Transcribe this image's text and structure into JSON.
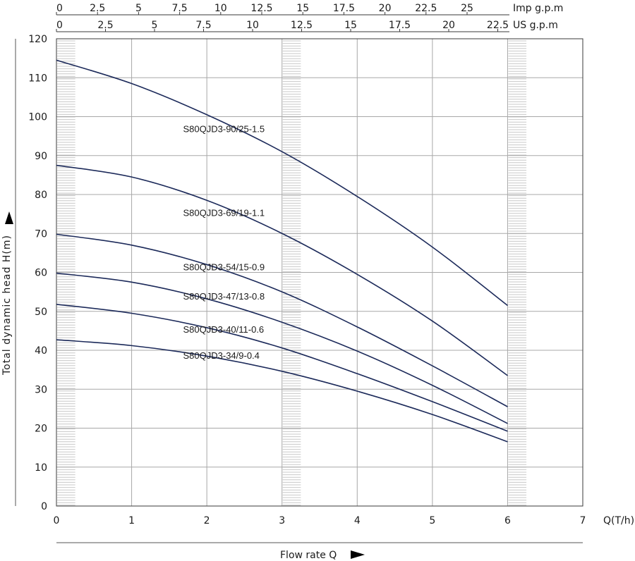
{
  "chart_data": {
    "type": "line",
    "xlabel": "Flow rate Q",
    "xunit": "Q(T/h)",
    "ylabel": "Total dynamic head H(m)",
    "xlim": [
      0,
      7
    ],
    "ylim": [
      0,
      120
    ],
    "x_ticks": [
      0,
      1,
      2,
      3,
      4,
      5,
      6,
      7
    ],
    "y_ticks": [
      0,
      10,
      20,
      30,
      40,
      50,
      60,
      70,
      80,
      90,
      100,
      110,
      120
    ],
    "grid": true,
    "hatched_bands": [
      [
        0,
        0.25
      ],
      [
        3,
        3.25
      ],
      [
        6,
        6.25
      ]
    ],
    "top_axes": [
      {
        "label": "Imp g.p.m",
        "ticks": [
          "0",
          "2.5",
          "5",
          "7.5",
          "10",
          "12.5",
          "15",
          "17.5",
          "20",
          "22.5",
          "25"
        ]
      },
      {
        "label": "US g.p.m",
        "ticks": [
          "0",
          "2.5",
          "5",
          "7.5",
          "10",
          "12.5",
          "15",
          "17.5",
          "20",
          "22.5"
        ]
      }
    ],
    "series": [
      {
        "name": "S80QJD3-90/25-1.5",
        "x": [
          0,
          1,
          2,
          3,
          4,
          5,
          6
        ],
        "y": [
          114.5,
          108.5,
          100.5,
          91,
          79.5,
          66.5,
          51.5
        ],
        "label_at": [
          1.75,
          96
        ]
      },
      {
        "name": "S80QJD3-69/19-1.1",
        "x": [
          0,
          1,
          2,
          3,
          4,
          5,
          6
        ],
        "y": [
          87.5,
          84.5,
          78.5,
          70,
          59.5,
          47.5,
          33.5
        ],
        "label_at": [
          1.75,
          74.5
        ]
      },
      {
        "name": "S80QJD3-54/15-0.9",
        "x": [
          0,
          1,
          2,
          3,
          4,
          5,
          6
        ],
        "y": [
          69.8,
          67,
          62,
          55,
          46,
          36,
          25.5
        ],
        "label_at": [
          1.75,
          60.5
        ]
      },
      {
        "name": "S80QJD3-47/13-0.8",
        "x": [
          0,
          1,
          2,
          3,
          4,
          5,
          6
        ],
        "y": [
          59.8,
          57.5,
          53.2,
          47.2,
          39.8,
          31,
          21.2
        ],
        "label_at": [
          1.75,
          53
        ]
      },
      {
        "name": "S80QJD3-40/11-0.6",
        "x": [
          0,
          1,
          2,
          3,
          4,
          5,
          6
        ],
        "y": [
          51.8,
          49.5,
          45.8,
          40.6,
          34,
          26.8,
          19.2
        ],
        "label_at": [
          1.75,
          44.5
        ]
      },
      {
        "name": "S80QJD3-34/9-0.4",
        "x": [
          0,
          1,
          2,
          3,
          4,
          5,
          6
        ],
        "y": [
          42.7,
          41.2,
          38.5,
          34.6,
          29.5,
          23.5,
          16.5
        ],
        "label_at": [
          1.75,
          37.8
        ]
      }
    ],
    "colors": {
      "curve": "#1c2a5a",
      "grid": "#a8a8a8",
      "axis": "#3a3a3a",
      "hatch": "#c8c8c8"
    }
  }
}
